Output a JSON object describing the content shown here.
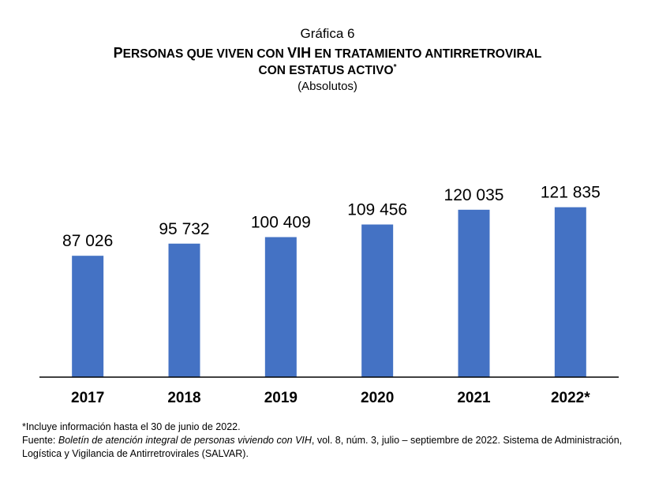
{
  "header": {
    "figure_label": "Gráfica 6",
    "title_p1": "P",
    "title_p2": "ERSONAS QUE VIVEN CON ",
    "title_p3": "VIH",
    "title_p4": " EN TRATAMIENTO ANTIRRETROVIRAL",
    "title_p5": "CON ESTATUS ACTIVO",
    "title_mark": "*",
    "unit": "(Absolutos)"
  },
  "chart_data": {
    "type": "bar",
    "categories": [
      "2017",
      "2018",
      "2019",
      "2020",
      "2021",
      "2022*"
    ],
    "values": [
      87026,
      95732,
      100409,
      109456,
      120035,
      121835
    ],
    "value_labels": [
      "87 026",
      "95 732",
      "100 409",
      "109 456",
      "120 035",
      "121 835"
    ],
    "title": "Personas que viven con VIH en tratamiento antirretroviral con estatus activo*",
    "ylabel": "",
    "xlabel": "",
    "ylim": [
      0,
      170000
    ],
    "grid": false,
    "legend": "none",
    "bar_color": "#4472c4"
  },
  "notes": {
    "footnote": "*Incluye información hasta el 30 de junio de 2022.",
    "source_prefix": "Fuente: ",
    "source_italic": "Boletín de atención integral de personas viviendo con VIH",
    "source_rest": ", vol. 8, núm. 3, julio – septiembre de 2022. Sistema de Administración, Logística y Vigilancia de Antirretrovirales (SALVAR)."
  }
}
